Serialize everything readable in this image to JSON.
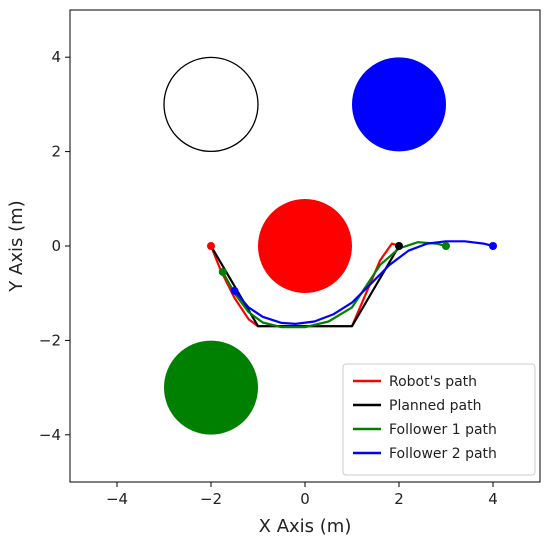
{
  "chart_data": {
    "type": "line",
    "title": "",
    "xlabel": "X Axis (m)",
    "ylabel": "Y Axis (m)",
    "xlim": [
      -5,
      5
    ],
    "ylim": [
      -5,
      5
    ],
    "xticks": [
      -4,
      -2,
      0,
      2,
      4
    ],
    "yticks": [
      -4,
      -2,
      0,
      2,
      4
    ],
    "xtick_labels": [
      "−4",
      "−2",
      "0",
      "2",
      "4"
    ],
    "ytick_labels": [
      "−4",
      "−2",
      "0",
      "2",
      "4"
    ],
    "grid": false,
    "legend_position": "lower-right",
    "obstacles": [
      {
        "name": "hollow-circle",
        "cx": -2,
        "cy": 3,
        "r": 1,
        "fill": "none",
        "stroke": "#000000"
      },
      {
        "name": "blue-circle",
        "cx": 2,
        "cy": 3,
        "r": 1,
        "fill": "#0000ff",
        "stroke": "none"
      },
      {
        "name": "red-circle",
        "cx": 0,
        "cy": 0,
        "r": 1,
        "fill": "#ff0000",
        "stroke": "none"
      },
      {
        "name": "green-circle",
        "cx": -2,
        "cy": -3,
        "r": 1,
        "fill": "#008000",
        "stroke": "none"
      }
    ],
    "series": [
      {
        "name": "Robot's path",
        "color": "#ff0000",
        "x": [
          -2.0,
          -1.8,
          -1.5,
          -1.2,
          -1.0,
          1.0,
          1.3,
          1.6,
          1.85,
          2.0
        ],
        "y": [
          0.0,
          -0.5,
          -1.1,
          -1.55,
          -1.7,
          -1.7,
          -1.0,
          -0.3,
          0.05,
          0.0
        ],
        "marker": null
      },
      {
        "name": "Planned path",
        "color": "#000000",
        "x": [
          -2.0,
          -1.0,
          1.0,
          2.0
        ],
        "y": [
          0.0,
          -1.7,
          -1.7,
          0.0
        ],
        "marker": [
          2.0,
          0.0
        ]
      },
      {
        "name": "Follower 1 path",
        "color": "#008000",
        "x": [
          -1.75,
          -1.5,
          -1.2,
          -0.9,
          -0.5,
          0.0,
          0.5,
          1.0,
          1.3,
          1.6,
          2.0,
          2.4,
          2.8,
          3.0
        ],
        "y": [
          -0.55,
          -1.0,
          -1.4,
          -1.62,
          -1.72,
          -1.72,
          -1.6,
          -1.3,
          -0.85,
          -0.4,
          -0.05,
          0.08,
          0.05,
          0.0
        ],
        "marker": [
          -1.75,
          -0.55
        ]
      },
      {
        "name": "Follower 2 path",
        "color": "#0000ff",
        "x": [
          -1.5,
          -1.2,
          -0.9,
          -0.5,
          -0.2,
          0.2,
          0.6,
          1.0,
          1.4,
          1.8,
          2.2,
          2.6,
          3.0,
          3.4,
          3.8,
          4.0
        ],
        "y": [
          -0.95,
          -1.3,
          -1.5,
          -1.63,
          -1.65,
          -1.6,
          -1.45,
          -1.2,
          -0.8,
          -0.4,
          -0.1,
          0.05,
          0.1,
          0.1,
          0.05,
          0.0
        ],
        "marker": [
          -1.5,
          -0.95
        ]
      }
    ],
    "extra_markers": [
      {
        "series": "Robot's path",
        "x": -2.0,
        "y": 0.0,
        "color": "#ff0000"
      },
      {
        "series": "Follower 1 path",
        "x": 3.0,
        "y": 0.0,
        "color": "#008000"
      },
      {
        "series": "Follower 2 path",
        "x": 4.0,
        "y": 0.0,
        "color": "#0000ff"
      }
    ]
  }
}
